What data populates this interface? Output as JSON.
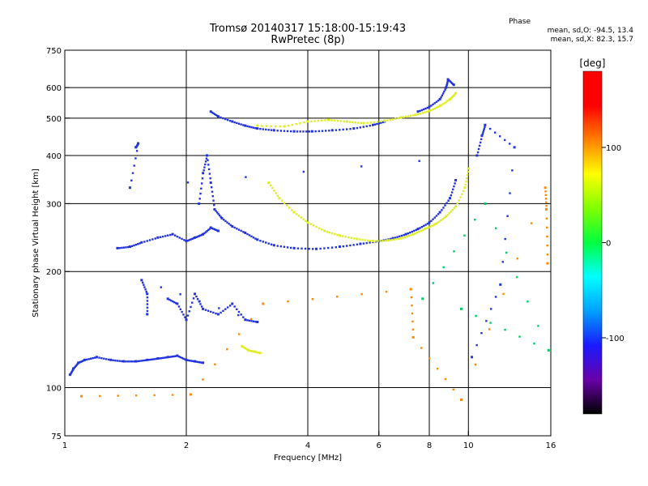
{
  "header": {
    "title": "Tromsø 20140317 15:18:00-15:19:43",
    "subtitle": "RwPretec (8p)",
    "phase_heading": "Phase",
    "phase_o": "mean, sd,O:  -94.5, 13.4",
    "phase_x": "mean, sd,X:   82.3, 15.7"
  },
  "chart_data": {
    "type": "scatter",
    "title": "Tromsø 20140317 15:18:00-15:19:43",
    "subtitle": "RwPretec (8p)",
    "xlabel": "Frequency [MHz]",
    "ylabel": "Stationary phase Virtual Height [km]",
    "x_scale": "log",
    "y_scale": "log",
    "xlim": [
      1,
      16
    ],
    "ylim": [
      75,
      750
    ],
    "x_ticks": [
      1,
      2,
      4,
      6,
      8,
      10,
      16
    ],
    "y_ticks": [
      75,
      100,
      200,
      300,
      400,
      500,
      600,
      750
    ],
    "x_tick_labels": [
      "1",
      "2",
      "4",
      "6",
      "8",
      "10",
      "16"
    ],
    "y_tick_labels": [
      "75",
      "100",
      "200",
      "300",
      "400",
      "500",
      "600",
      "750"
    ],
    "x_gridlines": [
      2,
      4,
      6,
      8,
      10
    ],
    "y_gridlines": [
      100,
      200,
      300,
      400,
      500,
      600
    ],
    "grid": true,
    "colorbar": {
      "label": "[deg]",
      "range": [
        -180,
        180
      ],
      "ticks": [
        100,
        0,
        -100
      ],
      "tick_labels": [
        "100",
        "0",
        "-100"
      ],
      "colors": [
        "#000000",
        "#6a00a8",
        "#1a1aff",
        "#00a0ff",
        "#00ffff",
        "#00ff40",
        "#80ff00",
        "#ffff00",
        "#ff8000",
        "#ff0000",
        "#ff0000"
      ]
    },
    "series": [
      {
        "color": "#2233dd",
        "points": [
          [
            1.03,
            108
          ],
          [
            1.05,
            112
          ],
          [
            1.08,
            116
          ],
          [
            1.12,
            118
          ],
          [
            1.2,
            120
          ],
          [
            1.3,
            118
          ],
          [
            1.4,
            117
          ],
          [
            1.5,
            117
          ],
          [
            1.6,
            118
          ],
          [
            1.7,
            119
          ],
          [
            1.8,
            120
          ],
          [
            1.9,
            121
          ],
          [
            2.0,
            118
          ],
          [
            2.1,
            117
          ],
          [
            2.2,
            116
          ]
        ]
      },
      {
        "color": "#2233dd",
        "points": [
          [
            1.35,
            230
          ],
          [
            1.45,
            232
          ],
          [
            1.55,
            238
          ],
          [
            1.7,
            245
          ],
          [
            1.85,
            250
          ],
          [
            2.0,
            240
          ],
          [
            2.1,
            245
          ],
          [
            2.2,
            250
          ],
          [
            2.3,
            260
          ],
          [
            2.4,
            255
          ]
        ]
      },
      {
        "color": "#2233dd",
        "points": [
          [
            2.15,
            300
          ],
          [
            2.2,
            360
          ],
          [
            2.25,
            400
          ],
          [
            2.3,
            340
          ],
          [
            2.35,
            290
          ],
          [
            2.45,
            275
          ],
          [
            2.6,
            262
          ],
          [
            2.8,
            252
          ],
          [
            3.0,
            242
          ],
          [
            3.3,
            234
          ],
          [
            3.7,
            230
          ],
          [
            4.2,
            229
          ],
          [
            4.8,
            232
          ],
          [
            5.4,
            236
          ],
          [
            6.0,
            240
          ],
          [
            6.5,
            244
          ],
          [
            7.0,
            250
          ],
          [
            7.5,
            258
          ],
          [
            8.0,
            268
          ],
          [
            8.5,
            285
          ],
          [
            9.0,
            310
          ],
          [
            9.3,
            345
          ]
        ]
      },
      {
        "color": "#ddee22",
        "points": [
          [
            3.2,
            340
          ],
          [
            3.4,
            310
          ],
          [
            3.7,
            285
          ],
          [
            4.0,
            268
          ],
          [
            4.4,
            255
          ],
          [
            4.8,
            248
          ],
          [
            5.3,
            243
          ],
          [
            5.8,
            240
          ],
          [
            6.3,
            241
          ],
          [
            6.8,
            244
          ],
          [
            7.3,
            250
          ],
          [
            7.8,
            258
          ],
          [
            8.3,
            266
          ],
          [
            8.8,
            278
          ],
          [
            9.3,
            295
          ],
          [
            9.8,
            330
          ],
          [
            10.0,
            370
          ]
        ]
      },
      {
        "color": "#2233dd",
        "points": [
          [
            2.3,
            520
          ],
          [
            2.4,
            505
          ],
          [
            2.6,
            490
          ],
          [
            2.8,
            478
          ],
          [
            3.0,
            470
          ],
          [
            3.3,
            465
          ],
          [
            3.7,
            462
          ],
          [
            4.1,
            462
          ],
          [
            4.6,
            465
          ],
          [
            5.2,
            470
          ],
          [
            5.8,
            480
          ],
          [
            6.2,
            490
          ]
        ]
      },
      {
        "color": "#ddee22",
        "points": [
          [
            3.0,
            478
          ],
          [
            3.5,
            476
          ],
          [
            4.0,
            490
          ],
          [
            4.5,
            495
          ],
          [
            5.0,
            490
          ],
          [
            5.5,
            485
          ],
          [
            6.2,
            492
          ],
          [
            6.8,
            502
          ],
          [
            7.4,
            510
          ],
          [
            8.0,
            522
          ],
          [
            8.5,
            538
          ],
          [
            9.0,
            560
          ],
          [
            9.3,
            580
          ]
        ]
      },
      {
        "color": "#2233dd",
        "points": [
          [
            7.5,
            520
          ],
          [
            8.0,
            535
          ],
          [
            8.5,
            560
          ],
          [
            8.8,
            600
          ],
          [
            8.9,
            630
          ],
          [
            9.2,
            610
          ]
        ]
      },
      {
        "color": "#2233dd",
        "points": [
          [
            1.8,
            170
          ],
          [
            1.9,
            165
          ],
          [
            2.0,
            150
          ],
          [
            2.1,
            175
          ],
          [
            2.2,
            160
          ],
          [
            2.4,
            155
          ],
          [
            2.6,
            165
          ],
          [
            2.8,
            150
          ],
          [
            3.0,
            148
          ],
          [
            1.55,
            190
          ],
          [
            1.6,
            175
          ],
          [
            1.6,
            155
          ]
        ]
      },
      {
        "color": "#ddee22",
        "points": [
          [
            2.75,
            128
          ],
          [
            2.85,
            125
          ],
          [
            2.95,
            124
          ],
          [
            3.05,
            123
          ]
        ]
      },
      {
        "color": "#2233dd",
        "points": [
          [
            1.5,
            420
          ],
          [
            1.52,
            430
          ],
          [
            1.45,
            330
          ],
          [
            10.5,
            400
          ],
          [
            10.8,
            450
          ],
          [
            11.0,
            480
          ],
          [
            13.0,
            420
          ],
          [
            12.0,
            185
          ],
          [
            10.2,
            120
          ]
        ]
      },
      {
        "color": "#ff8800",
        "points": [
          [
            1.1,
            95
          ],
          [
            2.05,
            96
          ],
          [
            3.1,
            165
          ],
          [
            7.2,
            180
          ],
          [
            7.3,
            135
          ],
          [
            9.6,
            93
          ],
          [
            15.5,
            330
          ],
          [
            15.6,
            290
          ],
          [
            15.7,
            210
          ]
        ]
      },
      {
        "color": "#00cc66",
        "points": [
          [
            9.6,
            160
          ],
          [
            15.8,
            125
          ],
          [
            11.0,
            300
          ],
          [
            7.7,
            170
          ]
        ]
      }
    ]
  }
}
